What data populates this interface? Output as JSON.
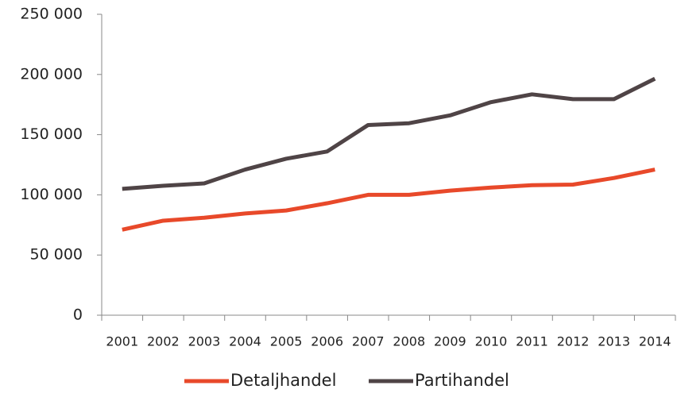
{
  "chart_data": {
    "type": "line",
    "categories": [
      "2001",
      "2002",
      "2003",
      "2004",
      "2005",
      "2006",
      "2007",
      "2008",
      "2009",
      "2010",
      "2011",
      "2012",
      "2013",
      "2014"
    ],
    "series": [
      {
        "name": "Detaljhandel",
        "color": "#e8492a",
        "values": [
          71000,
          78500,
          81000,
          84500,
          87000,
          93000,
          100000,
          100000,
          103500,
          106000,
          108000,
          108500,
          114000,
          121000
        ]
      },
      {
        "name": "Partihandel",
        "color": "#4f4446",
        "values": [
          105000,
          107500,
          109500,
          121000,
          130000,
          136000,
          158000,
          159500,
          166000,
          177000,
          183500,
          179500,
          179500,
          196500
        ]
      }
    ],
    "ylim": [
      0,
      250000
    ],
    "yticks": [
      {
        "value": 0,
        "label": "0"
      },
      {
        "value": 50000,
        "label": "50 000"
      },
      {
        "value": 100000,
        "label": "100 000"
      },
      {
        "value": 150000,
        "label": "150 000"
      },
      {
        "value": 200000,
        "label": "200 000"
      },
      {
        "value": 250000,
        "label": "250 000"
      }
    ],
    "legend": "bottom"
  }
}
